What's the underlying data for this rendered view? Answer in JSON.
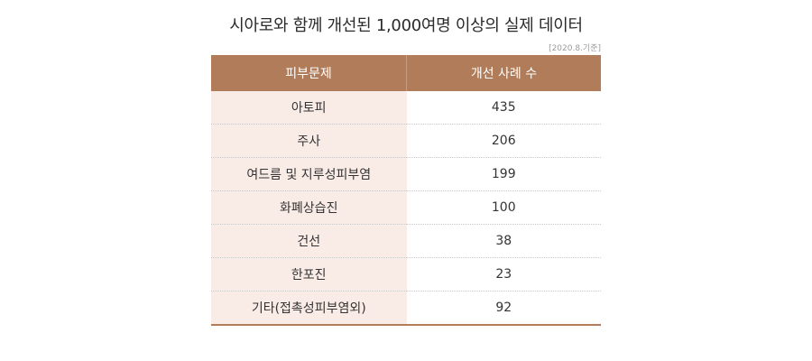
{
  "title": "시아로와 함께 개선된 1,000여명 이상의 실제 데이터",
  "note": "[2020.8.기준]",
  "colors": {
    "header_bg": "#b07c5a",
    "left_column_bg": "#f9ebe6",
    "bottom_border": "#b07c5a"
  },
  "table": {
    "headers": [
      "피부문제",
      "개선 사례 수"
    ],
    "rows": [
      {
        "problem": "아토피",
        "count": "435"
      },
      {
        "problem": "주사",
        "count": "206"
      },
      {
        "problem": "여드름 및 지루성피부염",
        "count": "199"
      },
      {
        "problem": "화폐상습진",
        "count": "100"
      },
      {
        "problem": "건선",
        "count": "38"
      },
      {
        "problem": "한포진",
        "count": "23"
      },
      {
        "problem": "기타(접촉성피부염외)",
        "count": "92"
      }
    ]
  }
}
